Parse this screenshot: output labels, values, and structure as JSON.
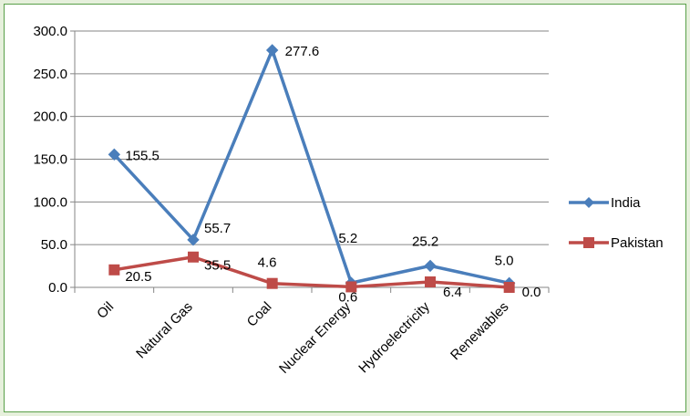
{
  "chart_data": {
    "type": "line",
    "title": "",
    "xlabel": "",
    "ylabel": "",
    "categories": [
      "Oil",
      "Natural Gas",
      "Coal",
      "Nuclear Energy",
      "Hydroelectricity",
      "Renewables"
    ],
    "ylim": [
      0,
      300
    ],
    "yticks": [
      "0.0",
      "50.0",
      "100.0",
      "150.0",
      "200.0",
      "250.0",
      "300.0"
    ],
    "grid": true,
    "legend_position": "right",
    "series": [
      {
        "name": "India",
        "color": "#4a7ebb",
        "marker": "diamond",
        "values": [
          155.5,
          55.7,
          277.6,
          5.2,
          25.2,
          5.0
        ],
        "labels": [
          "155.5",
          "55.7",
          "277.6",
          "5.2",
          "25.2",
          "5.0"
        ]
      },
      {
        "name": "Pakistan",
        "color": "#be4b48",
        "marker": "square",
        "values": [
          20.5,
          35.5,
          4.6,
          0.6,
          6.4,
          0.0
        ],
        "labels": [
          "20.5",
          "35.5",
          "4.6",
          "0.6",
          "6.4",
          "0.0"
        ]
      }
    ]
  }
}
